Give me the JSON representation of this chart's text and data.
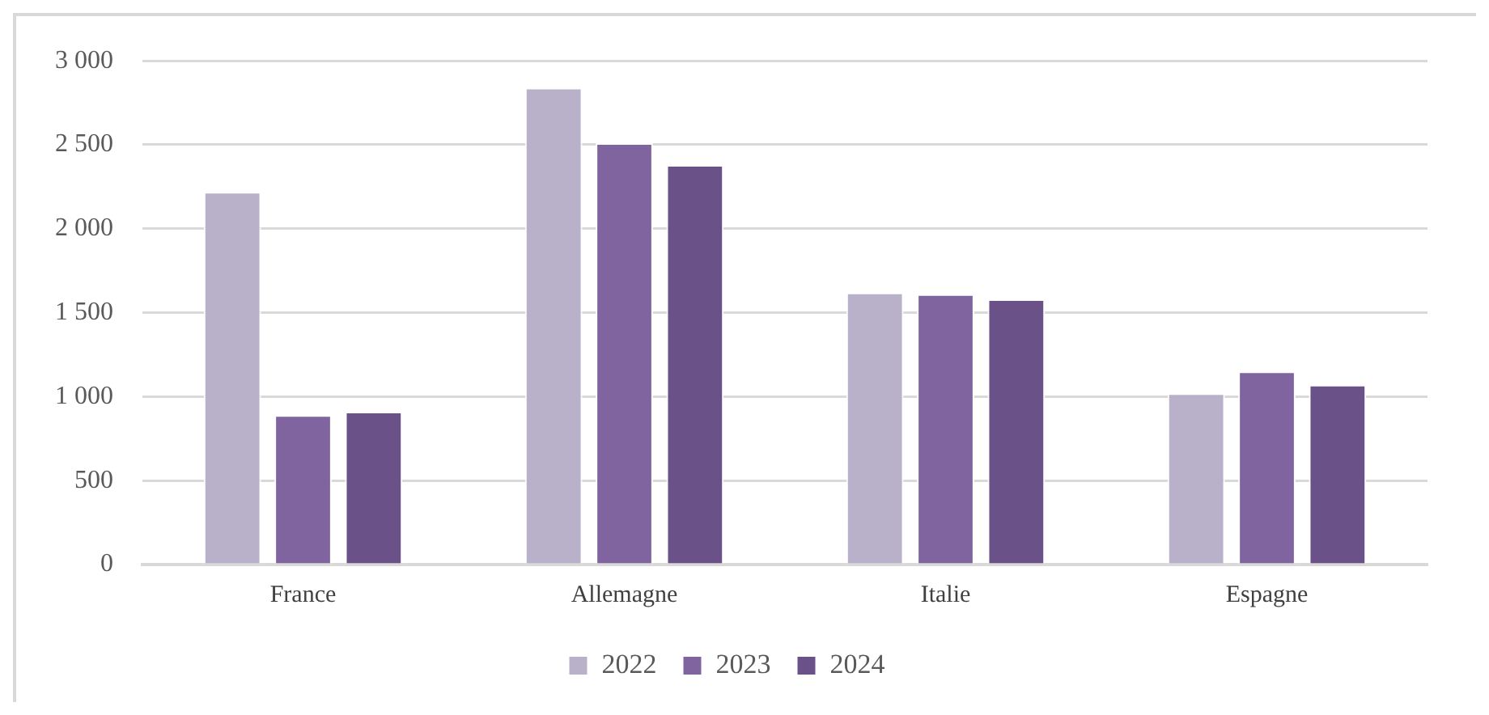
{
  "chart_data": {
    "type": "bar",
    "categories": [
      "France",
      "Allemagne",
      "Italie",
      "Espagne"
    ],
    "series": [
      {
        "name": "2022",
        "color": "#b9b0ca",
        "values": [
          2220,
          2840,
          1620,
          1020
        ]
      },
      {
        "name": "2023",
        "color": "#8064a0",
        "values": [
          890,
          2510,
          1610,
          1150
        ]
      },
      {
        "name": "2024",
        "color": "#6a5188",
        "values": [
          910,
          2380,
          1580,
          1070
        ]
      }
    ],
    "ylim": [
      0,
      3000
    ],
    "yticks": [
      0,
      500,
      {
        "value": 1000,
        "label": "1 000"
      },
      {
        "value": 1500,
        "label": "1 500"
      },
      {
        "value": 2000,
        "label": "2 000"
      },
      {
        "value": 2500,
        "label": "2 500"
      },
      {
        "value": 3000,
        "label": "3 000"
      }
    ],
    "grid": "y",
    "legend": "bottom"
  }
}
